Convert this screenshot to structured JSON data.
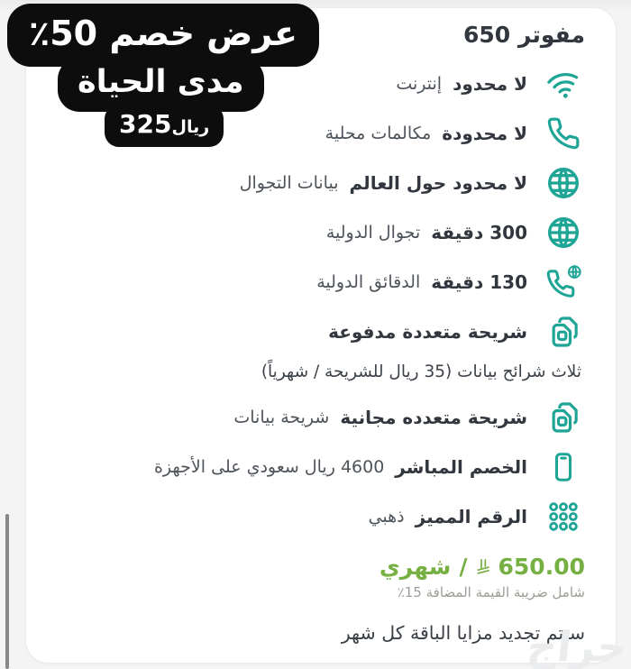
{
  "offer_badge": {
    "line1": "عرض خصم 50٪",
    "line2": "مدى الحياة",
    "price_amount": "325",
    "price_currency": "ريال"
  },
  "plan": {
    "title": "مفوتر 650",
    "features": [
      {
        "icon": "wifi-icon",
        "bold": "لا محدود",
        "light": "إنترنت"
      },
      {
        "icon": "phone-icon",
        "bold": "لا محدودة",
        "light": "مكالمات محلية"
      },
      {
        "icon": "globe-icon",
        "bold": "لا محدود حول العالم",
        "light": "بيانات التجوال"
      },
      {
        "icon": "globe-icon",
        "bold": "300 دقيقة",
        "light": "تجوال الدولية"
      },
      {
        "icon": "phone-globe-icon",
        "bold": "130 دقيقة",
        "light": "الدقائق الدولية"
      },
      {
        "icon": "multi-sim-icon",
        "bold": "شريحة متعددة مدفوعة",
        "light": "",
        "sub": "ثلاث شرائح بيانات (35 ريال للشريحة / شهرياً)"
      },
      {
        "icon": "multi-sim-icon",
        "bold": "شريحة متعدده مجانية",
        "light": "شريحة بيانات"
      },
      {
        "icon": "smartphone-icon",
        "bold": "الخصم المباشر",
        "light": "4600 ريال سعودي على الأجهزة"
      },
      {
        "icon": "dots-grid-icon",
        "bold": "الرقم المميز",
        "light": "ذهبي"
      }
    ],
    "pricing": {
      "amount": "650.00",
      "separator": "/",
      "period": "شهري",
      "vat_note": "شامل ضريبة القيمة المضافة 15٪"
    },
    "renewal_note": "سيتم تجديد مزايا الباقة كل شهر"
  },
  "watermark": "حراج",
  "colors": {
    "teal": "#1fa596",
    "price_green": "#76b043",
    "dark_text": "#32363e",
    "light_text": "#4e545b",
    "badge_bg": "#0d0d0d"
  }
}
